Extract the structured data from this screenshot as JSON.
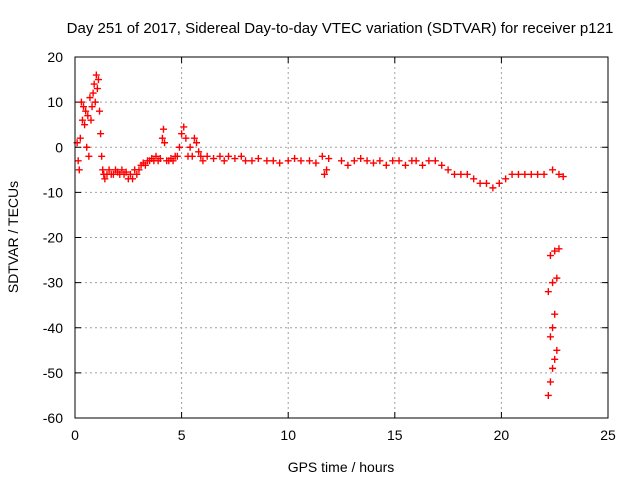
{
  "chart_data": {
    "type": "scatter",
    "title": "Day 251 of 2017, Sidereal Day-to-day VTEC variation (SDTVAR) for receiver p121",
    "xlabel": "GPS time / hours",
    "ylabel": "SDTVAR / TECUs",
    "xlim": [
      0,
      25
    ],
    "ylim": [
      -60,
      20
    ],
    "xticks": [
      0,
      5,
      10,
      15,
      20,
      25
    ],
    "yticks": [
      -60,
      -50,
      -40,
      -30,
      -20,
      -10,
      0,
      10,
      20
    ],
    "grid": true,
    "marker": "+",
    "series_color": "#ff0000",
    "series": [
      {
        "name": "SDTVAR",
        "points": [
          [
            0.1,
            1
          ],
          [
            0.15,
            -3
          ],
          [
            0.2,
            -5
          ],
          [
            0.25,
            2
          ],
          [
            0.3,
            10
          ],
          [
            0.35,
            6
          ],
          [
            0.4,
            9
          ],
          [
            0.45,
            5
          ],
          [
            0.5,
            8
          ],
          [
            0.55,
            0
          ],
          [
            0.6,
            7
          ],
          [
            0.65,
            -2
          ],
          [
            0.7,
            11
          ],
          [
            0.75,
            6
          ],
          [
            0.8,
            9
          ],
          [
            0.85,
            12
          ],
          [
            0.9,
            14
          ],
          [
            0.95,
            10
          ],
          [
            1.0,
            16
          ],
          [
            1.05,
            13
          ],
          [
            1.1,
            15
          ],
          [
            1.15,
            8
          ],
          [
            1.2,
            3
          ],
          [
            1.25,
            -2
          ],
          [
            1.3,
            -5
          ],
          [
            1.35,
            -6
          ],
          [
            1.4,
            -7
          ],
          [
            1.5,
            -6
          ],
          [
            1.6,
            -5
          ],
          [
            1.7,
            -6
          ],
          [
            1.8,
            -6
          ],
          [
            1.9,
            -5
          ],
          [
            2.0,
            -5.5
          ],
          [
            2.1,
            -6
          ],
          [
            2.2,
            -5
          ],
          [
            2.3,
            -6
          ],
          [
            2.4,
            -5.5
          ],
          [
            2.5,
            -7
          ],
          [
            2.6,
            -6
          ],
          [
            2.7,
            -7
          ],
          [
            2.8,
            -5
          ],
          [
            2.9,
            -6
          ],
          [
            3.0,
            -5
          ],
          [
            3.1,
            -4
          ],
          [
            3.2,
            -3.5
          ],
          [
            3.3,
            -4
          ],
          [
            3.4,
            -3
          ],
          [
            3.5,
            -3
          ],
          [
            3.6,
            -2.5
          ],
          [
            3.7,
            -3
          ],
          [
            3.8,
            -2
          ],
          [
            3.9,
            -3
          ],
          [
            4.0,
            -2.5
          ],
          [
            4.1,
            2
          ],
          [
            4.15,
            4
          ],
          [
            4.2,
            1
          ],
          [
            4.3,
            -3
          ],
          [
            4.4,
            -3
          ],
          [
            4.5,
            -2.5
          ],
          [
            4.6,
            -3
          ],
          [
            4.7,
            -2
          ],
          [
            4.8,
            -2
          ],
          [
            4.9,
            0
          ],
          [
            5.0,
            3
          ],
          [
            5.1,
            4.5
          ],
          [
            5.2,
            2
          ],
          [
            5.3,
            -2
          ],
          [
            5.4,
            0
          ],
          [
            5.5,
            -2
          ],
          [
            5.6,
            2
          ],
          [
            5.7,
            1
          ],
          [
            5.8,
            -1
          ],
          [
            5.9,
            -2
          ],
          [
            6.0,
            -3
          ],
          [
            6.2,
            -2
          ],
          [
            6.5,
            -2.5
          ],
          [
            6.8,
            -2
          ],
          [
            7.0,
            -3
          ],
          [
            7.2,
            -2
          ],
          [
            7.5,
            -2.5
          ],
          [
            7.8,
            -2
          ],
          [
            8.0,
            -3
          ],
          [
            8.3,
            -3
          ],
          [
            8.6,
            -2.5
          ],
          [
            9.0,
            -3
          ],
          [
            9.3,
            -3
          ],
          [
            9.6,
            -3.5
          ],
          [
            10.0,
            -3
          ],
          [
            10.3,
            -2.5
          ],
          [
            10.6,
            -3
          ],
          [
            11.0,
            -3
          ],
          [
            11.3,
            -3.5
          ],
          [
            11.6,
            -2
          ],
          [
            11.9,
            -2.5
          ],
          [
            11.7,
            -6
          ],
          [
            11.8,
            -5
          ],
          [
            12.5,
            -3
          ],
          [
            12.8,
            -4
          ],
          [
            13.1,
            -3
          ],
          [
            13.4,
            -2.5
          ],
          [
            13.7,
            -3
          ],
          [
            14.0,
            -3.5
          ],
          [
            14.3,
            -3
          ],
          [
            14.6,
            -4
          ],
          [
            14.9,
            -3
          ],
          [
            15.2,
            -3
          ],
          [
            15.5,
            -4
          ],
          [
            15.8,
            -3
          ],
          [
            16.0,
            -3
          ],
          [
            16.3,
            -4
          ],
          [
            16.6,
            -3
          ],
          [
            16.9,
            -3
          ],
          [
            17.2,
            -4
          ],
          [
            17.5,
            -5
          ],
          [
            17.8,
            -6
          ],
          [
            18.1,
            -6
          ],
          [
            18.4,
            -6
          ],
          [
            18.7,
            -7
          ],
          [
            19.0,
            -8
          ],
          [
            19.3,
            -8
          ],
          [
            19.6,
            -9
          ],
          [
            19.9,
            -8
          ],
          [
            20.2,
            -7
          ],
          [
            20.5,
            -6
          ],
          [
            20.8,
            -6
          ],
          [
            21.1,
            -6
          ],
          [
            21.4,
            -6
          ],
          [
            21.7,
            -6
          ],
          [
            22.0,
            -6
          ],
          [
            22.4,
            -5
          ],
          [
            22.7,
            -6
          ],
          [
            22.9,
            -6.5
          ],
          [
            22.3,
            -24
          ],
          [
            22.5,
            -23
          ],
          [
            22.7,
            -22.5
          ],
          [
            22.2,
            -32
          ],
          [
            22.4,
            -30
          ],
          [
            22.6,
            -29
          ],
          [
            22.3,
            -42
          ],
          [
            22.4,
            -40
          ],
          [
            22.5,
            -37
          ],
          [
            22.2,
            -55
          ],
          [
            22.3,
            -52
          ],
          [
            22.4,
            -49
          ],
          [
            22.5,
            -47
          ],
          [
            22.6,
            -45
          ]
        ]
      }
    ]
  }
}
